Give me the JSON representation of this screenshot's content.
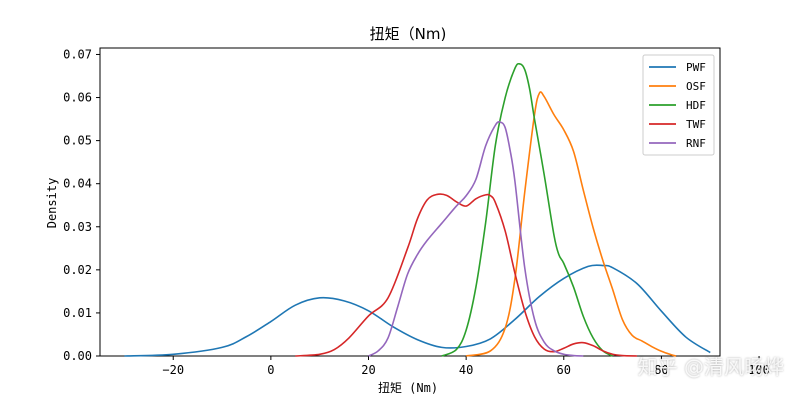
{
  "chart_data": {
    "type": "line",
    "title": "扭矩（Nm)",
    "xlabel": "扭矩 (Nm)",
    "ylabel": "Density",
    "xlim": [
      -35,
      92
    ],
    "ylim": [
      0,
      0.0715
    ],
    "xticks": [
      -20,
      0,
      20,
      40,
      60,
      80,
      100
    ],
    "xtick_labels": [
      "−20",
      "0",
      "20",
      "40",
      "60",
      "80",
      "100"
    ],
    "yticks": [
      0.0,
      0.01,
      0.02,
      0.03,
      0.04,
      0.05,
      0.06,
      0.07
    ],
    "ytick_labels": [
      "0.00",
      "0.01",
      "0.02",
      "0.03",
      "0.04",
      "0.05",
      "0.06",
      "0.07"
    ],
    "grid": false,
    "legend_position": "top-right",
    "series": [
      {
        "name": "PWF",
        "color": "#1f77b4",
        "x": [
          -30,
          -20,
          -10,
          -5,
          0,
          5,
          10,
          15,
          20,
          25,
          30,
          35,
          40,
          45,
          50,
          55,
          60,
          65,
          68,
          70,
          75,
          80,
          85,
          90
        ],
        "y": [
          0.0,
          0.0004,
          0.002,
          0.0045,
          0.008,
          0.0118,
          0.0135,
          0.0128,
          0.0105,
          0.0068,
          0.0038,
          0.002,
          0.0022,
          0.004,
          0.0085,
          0.0138,
          0.018,
          0.0208,
          0.021,
          0.0205,
          0.0168,
          0.0104,
          0.0044,
          0.0008
        ]
      },
      {
        "name": "OSF",
        "color": "#ff7f0e",
        "x": [
          40,
          45,
          48,
          50,
          52,
          54,
          55,
          56,
          58,
          60,
          62,
          64,
          66,
          68,
          70,
          72,
          74,
          76,
          78,
          80,
          82,
          83
        ],
        "y": [
          0.0,
          0.0012,
          0.0065,
          0.018,
          0.038,
          0.056,
          0.061,
          0.0602,
          0.056,
          0.0525,
          0.0475,
          0.0385,
          0.0298,
          0.0222,
          0.0155,
          0.0085,
          0.0048,
          0.0035,
          0.0022,
          0.0011,
          0.0003,
          0.0
        ]
      },
      {
        "name": "HDF",
        "color": "#2ca02c",
        "x": [
          35,
          38,
          40,
          42,
          44,
          46,
          48,
          50,
          51,
          52,
          53,
          54,
          56,
          58,
          59,
          60,
          62,
          64,
          66,
          68,
          70
        ],
        "y": [
          0.0,
          0.0015,
          0.006,
          0.016,
          0.031,
          0.049,
          0.06,
          0.0668,
          0.0678,
          0.0665,
          0.062,
          0.055,
          0.042,
          0.028,
          0.0235,
          0.0215,
          0.016,
          0.0092,
          0.0042,
          0.0012,
          0.0
        ]
      },
      {
        "name": "TWF",
        "color": "#d62728",
        "x": [
          5,
          10,
          13,
          16,
          20,
          24,
          28,
          30,
          32,
          34,
          36,
          38,
          40,
          42,
          44,
          45,
          46,
          48,
          50,
          52,
          54,
          56,
          58,
          60,
          62,
          64,
          66,
          68,
          70,
          72,
          75
        ],
        "y": [
          0.0,
          0.0004,
          0.0015,
          0.0042,
          0.0093,
          0.0135,
          0.025,
          0.0318,
          0.0362,
          0.0375,
          0.0373,
          0.0358,
          0.0348,
          0.0365,
          0.0374,
          0.0372,
          0.0356,
          0.029,
          0.0192,
          0.0105,
          0.0045,
          0.0016,
          0.001,
          0.0018,
          0.0028,
          0.0031,
          0.0024,
          0.0012,
          0.0004,
          0.0001,
          0.0
        ]
      },
      {
        "name": "RNF",
        "color": "#9467bd",
        "x": [
          20,
          22,
          24,
          26,
          28,
          30,
          32,
          35,
          38,
          40,
          42,
          44,
          46,
          47,
          48,
          49,
          50,
          52,
          54,
          56,
          58,
          60,
          62,
          64
        ],
        "y": [
          0.0,
          0.0012,
          0.0042,
          0.0115,
          0.019,
          0.0235,
          0.0268,
          0.0308,
          0.0348,
          0.0372,
          0.041,
          0.0488,
          0.0536,
          0.0543,
          0.053,
          0.0478,
          0.0405,
          0.0205,
          0.0085,
          0.0032,
          0.0012,
          0.0004,
          0.0001,
          0.0
        ]
      }
    ]
  },
  "watermark": {
    "text": "知乎 @清风旸烨"
  }
}
